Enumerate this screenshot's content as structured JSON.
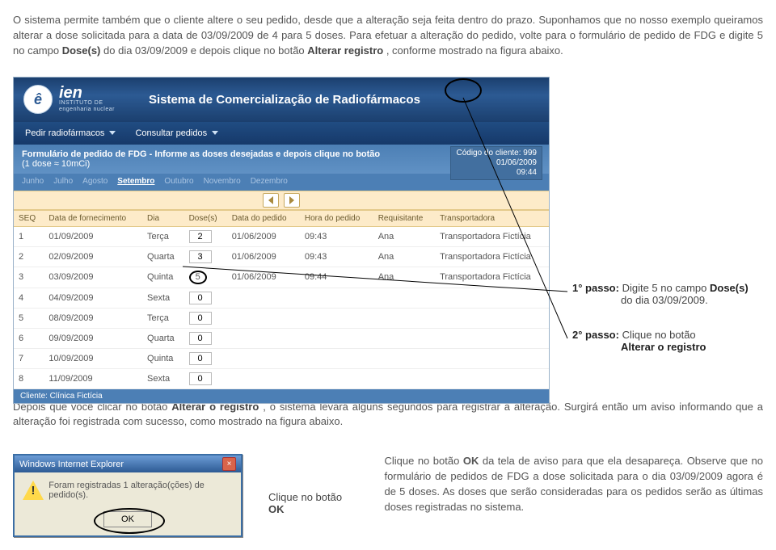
{
  "intro": {
    "p1_a": "O sistema permite também que o cliente altere o seu pedido, desde que a alteração seja feita dentro do prazo. Suponhamos que no nosso exemplo queiramos alterar a dose solicitada para a data de 03/09/2009 de 4 para 5 doses. Para efetuar a alteração do pedido, volte para o formulário de pedido de FDG e digite 5 no campo ",
    "p1_b": "Dose(s)",
    "p1_c": " do dia 03/09/2009 e depois clique no botão ",
    "p1_d": "Alterar registro",
    "p1_e": ", conforme mostrado na figura abaixo."
  },
  "header": {
    "logo_mark": "ê",
    "logo_brand": "ien",
    "logo_sub1": "INSTITUTO DE",
    "logo_sub2": "engenharia nuclear",
    "title": "Sistema de Comercialização de Radiofármacos"
  },
  "menu": {
    "m1": "Pedir radiofármacos",
    "m2": "Consultar pedidos"
  },
  "formbar": {
    "title": "Formulário de pedido de FDG - Informe as doses desejadas e depois clique no botão",
    "sub": "(1 dose ≈ 10mCi)",
    "client_code": "Código do cliente: 999",
    "date": "01/06/2009",
    "time": "09:44"
  },
  "months": [
    "Junho",
    "Julho",
    "Agosto",
    "Setembro",
    "Outubro",
    "Novembro",
    "Dezembro"
  ],
  "months_selected_index": 3,
  "columns": {
    "seq": "SEQ",
    "dataforn": "Data de fornecimento",
    "dia": "Dia",
    "dose": "Dose(s)",
    "dataped": "Data do pedido",
    "horaped": "Hora do pedido",
    "requis": "Requisitante",
    "transp": "Transportadora"
  },
  "rows": [
    {
      "seq": "1",
      "dataforn": "01/09/2009",
      "dia": "Terça",
      "dose": "2",
      "dataped": "01/06/2009",
      "horaped": "09:43",
      "requis": "Ana",
      "transp": "Transportadora Fictícia"
    },
    {
      "seq": "2",
      "dataforn": "02/09/2009",
      "dia": "Quarta",
      "dose": "3",
      "dataped": "01/06/2009",
      "horaped": "09:43",
      "requis": "Ana",
      "transp": "Transportadora Fictícia"
    },
    {
      "seq": "3",
      "dataforn": "03/09/2009",
      "dia": "Quinta",
      "dose": "5",
      "dataped": "01/06/2009",
      "horaped": "09:44",
      "requis": "Ana",
      "transp": "Transportadora Fictícia",
      "hl": true
    },
    {
      "seq": "4",
      "dataforn": "04/09/2009",
      "dia": "Sexta",
      "dose": "0",
      "dataped": "",
      "horaped": "",
      "requis": "",
      "transp": ""
    },
    {
      "seq": "5",
      "dataforn": "08/09/2009",
      "dia": "Terça",
      "dose": "0",
      "dataped": "",
      "horaped": "",
      "requis": "",
      "transp": ""
    },
    {
      "seq": "6",
      "dataforn": "09/09/2009",
      "dia": "Quarta",
      "dose": "0",
      "dataped": "",
      "horaped": "",
      "requis": "",
      "transp": ""
    },
    {
      "seq": "7",
      "dataforn": "10/09/2009",
      "dia": "Quinta",
      "dose": "0",
      "dataped": "",
      "horaped": "",
      "requis": "",
      "transp": ""
    },
    {
      "seq": "8",
      "dataforn": "11/09/2009",
      "dia": "Sexta",
      "dose": "0",
      "dataped": "",
      "horaped": "",
      "requis": "",
      "transp": ""
    }
  ],
  "footer_client": "Cliente: Clínica Fictícia",
  "steps": {
    "s1_label": "1° passo:",
    "s1_a": " Digite 5 no campo ",
    "s1_b": "Dose(s)",
    "s1_c": " do dia 03/09/2009.",
    "s2_label": "2° passo:",
    "s2_a": " Clique no botão ",
    "s2_b": "Alterar o registro"
  },
  "after": {
    "p_a": "Depois que você clicar no botão ",
    "p_b": "Alterar o registro",
    "p_c": ", o sistema levará alguns segundos para registrar a alteração. Surgirá então um aviso informando que a alteração foi registrada com sucesso, como mostrado na figura abaixo."
  },
  "dialog": {
    "title": "Windows Internet Explorer",
    "msg": "Foram registradas 1 alteração(ções) de pedido(s).",
    "ok": "OK",
    "caption_a": "Clique no botão ",
    "caption_b": "OK"
  },
  "right": {
    "p_a": "Clique no botão ",
    "p_b": "OK",
    "p_c": " da tela de aviso para que ela desapareça. Observe que no formulário de pedidos de FDG a dose solicitada para o dia 03/09/2009 agora é de 5 doses. As doses que serão consideradas para os pedidos serão as últimas doses registradas no sistema."
  }
}
